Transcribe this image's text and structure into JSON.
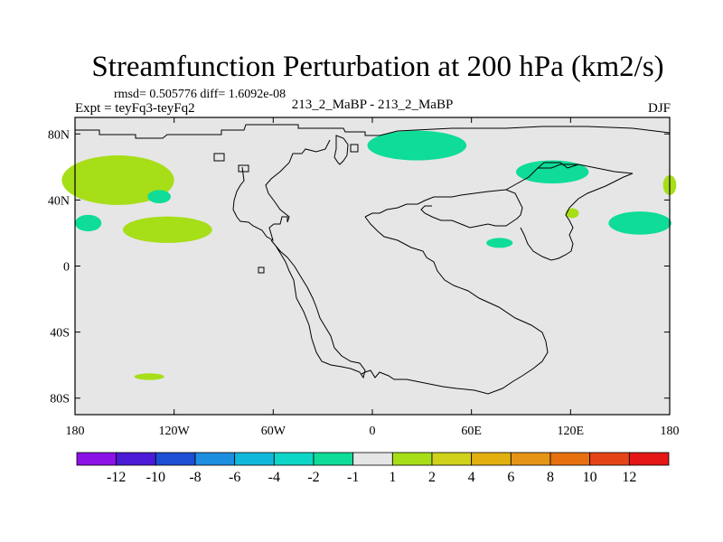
{
  "chart_data": {
    "type": "heatmap",
    "title": "Streamfunction Perturbation at 200 hPa (km2/s)",
    "stats": "rmsd= 0.505776 diff= 1.6092e-08",
    "expt": "Expt = teyFq3-teyFq2",
    "subtitle": "213_2_MaBP - 213_2_MaBP",
    "season": "DJF",
    "xlim": [
      -180,
      180
    ],
    "ylim": [
      -90,
      90
    ],
    "x_ticks": [
      {
        "value": -180,
        "label": "180"
      },
      {
        "value": -120,
        "label": "120W"
      },
      {
        "value": -60,
        "label": "60W"
      },
      {
        "value": 0,
        "label": "0"
      },
      {
        "value": 60,
        "label": "60E"
      },
      {
        "value": 120,
        "label": "120E"
      },
      {
        "value": 180,
        "label": "180"
      }
    ],
    "y_ticks": [
      {
        "value": 80,
        "label": "80N"
      },
      {
        "value": 40,
        "label": "40N"
      },
      {
        "value": 0,
        "label": "0"
      },
      {
        "value": -40,
        "label": "40S"
      },
      {
        "value": -80,
        "label": "80S"
      }
    ],
    "background_fill": "#e6e6e6",
    "colorbar": {
      "colors": [
        "#8b12e6",
        "#4b1ad6",
        "#1c4fd4",
        "#1d8ee0",
        "#12b8dc",
        "#0ed6c6",
        "#0edc98",
        "#e6e6e6",
        "#a6de18",
        "#cfd11a",
        "#e2b010",
        "#e59416",
        "#e67010",
        "#e54516",
        "#e41616"
      ],
      "labels": [
        "-12",
        "-10",
        "-8",
        "-6",
        "-4",
        "-2",
        "-1",
        "1",
        "2",
        "4",
        "6",
        "8",
        "10",
        "12"
      ]
    },
    "anomalies": [
      {
        "name": "N Pacific positive",
        "sign": "positive",
        "color": "#a6de18",
        "lon": -154,
        "lat": 52,
        "rlon": 34,
        "rlat": 15
      },
      {
        "name": "subtropical Pacific positive",
        "sign": "positive",
        "color": "#a6de18",
        "lon": -124,
        "lat": 22,
        "rlon": 27,
        "rlat": 8
      },
      {
        "name": "Arctic negative",
        "sign": "negative",
        "color": "#0edc98",
        "lon": 27,
        "lat": 73,
        "rlon": 30,
        "rlat": 9
      },
      {
        "name": "Siberia negative",
        "sign": "negative",
        "color": "#0edc98",
        "lon": 109,
        "lat": 57,
        "rlon": 22,
        "rlat": 7
      },
      {
        "name": "W Pacific negative",
        "sign": "negative",
        "color": "#0edc98",
        "lon": 162,
        "lat": 26,
        "rlon": 19,
        "rlat": 7
      },
      {
        "name": "dateline negative",
        "sign": "negative",
        "color": "#0edc98",
        "lon": -172,
        "lat": 26,
        "rlon": 8,
        "rlat": 5
      },
      {
        "name": "NE Pacific negative",
        "sign": "negative",
        "color": "#0edc98",
        "lon": -129,
        "lat": 42,
        "rlon": 7,
        "rlat": 4
      },
      {
        "name": "Asia negative",
        "sign": "negative",
        "color": "#0edc98",
        "lon": 77,
        "lat": 14,
        "rlon": 8,
        "rlat": 3
      },
      {
        "name": "S Pacific positive",
        "sign": "positive",
        "color": "#a6de18",
        "lon": -135,
        "lat": -67,
        "rlon": 9,
        "rlat": 2
      },
      {
        "name": "Tibet positive",
        "sign": "positive",
        "color": "#a6de18",
        "lon": 121,
        "lat": 32,
        "rlon": 4,
        "rlat": 3
      },
      {
        "name": "dateline east positive",
        "sign": "positive",
        "color": "#a6de18",
        "lon": 180,
        "lat": 49,
        "rlon": 4,
        "rlat": 6
      }
    ]
  }
}
